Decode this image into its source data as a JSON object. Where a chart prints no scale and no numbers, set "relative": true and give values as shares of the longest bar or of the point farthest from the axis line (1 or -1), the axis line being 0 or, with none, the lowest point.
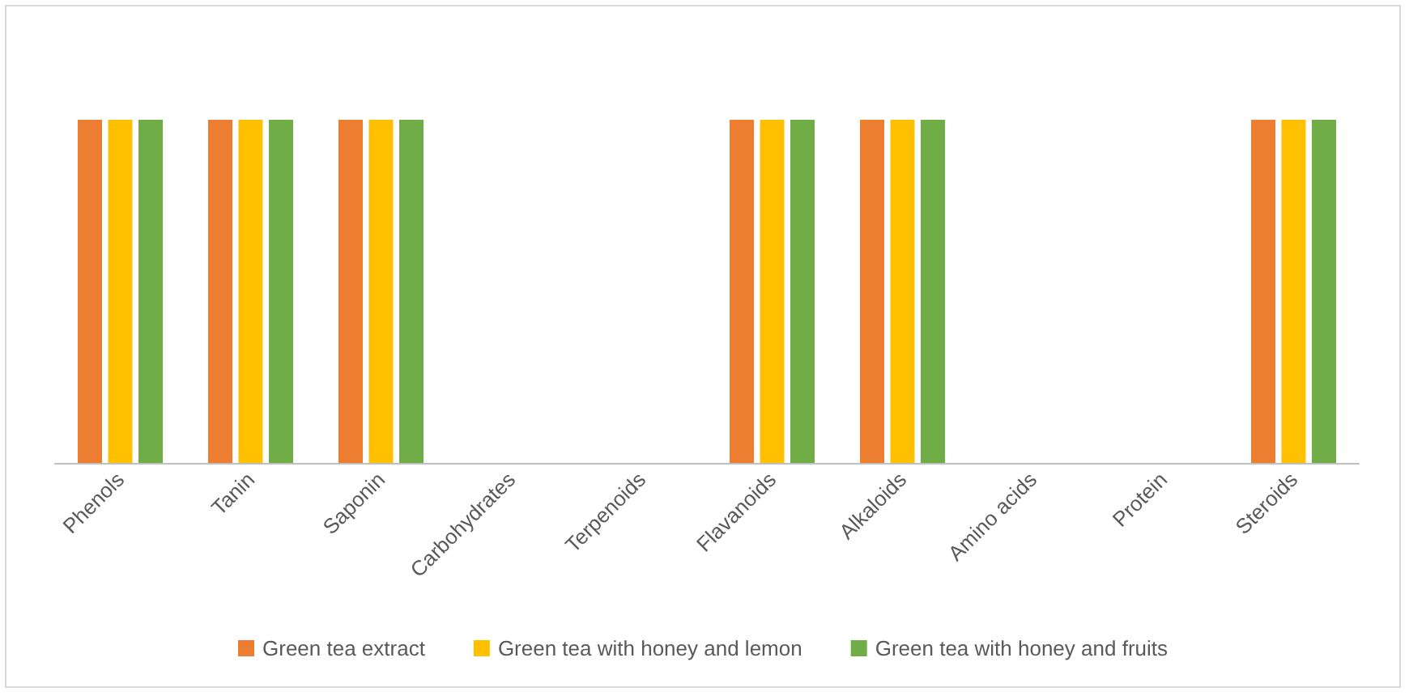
{
  "chart_data": {
    "type": "bar",
    "relative": true,
    "categories": [
      "Phenols",
      "Tanin",
      "Saponin",
      "Carbohydrates",
      "Terpenoids",
      "Flavanoids",
      "Alkaloids",
      "Amino acids",
      "Protein",
      "Steroids"
    ],
    "series": [
      {
        "name": "Green tea extract",
        "color": "#ed7d31",
        "values": [
          1,
          1,
          1,
          0,
          0,
          1,
          1,
          0,
          0,
          1
        ]
      },
      {
        "name": "Green tea with honey and lemon",
        "color": "#ffc000",
        "values": [
          1,
          1,
          1,
          0,
          0,
          1,
          1,
          0,
          0,
          1
        ]
      },
      {
        "name": "Green tea with honey and fruits",
        "color": "#70ad47",
        "values": [
          1,
          1,
          1,
          0,
          0,
          1,
          1,
          0,
          0,
          1
        ]
      }
    ],
    "legend": "bottom"
  }
}
